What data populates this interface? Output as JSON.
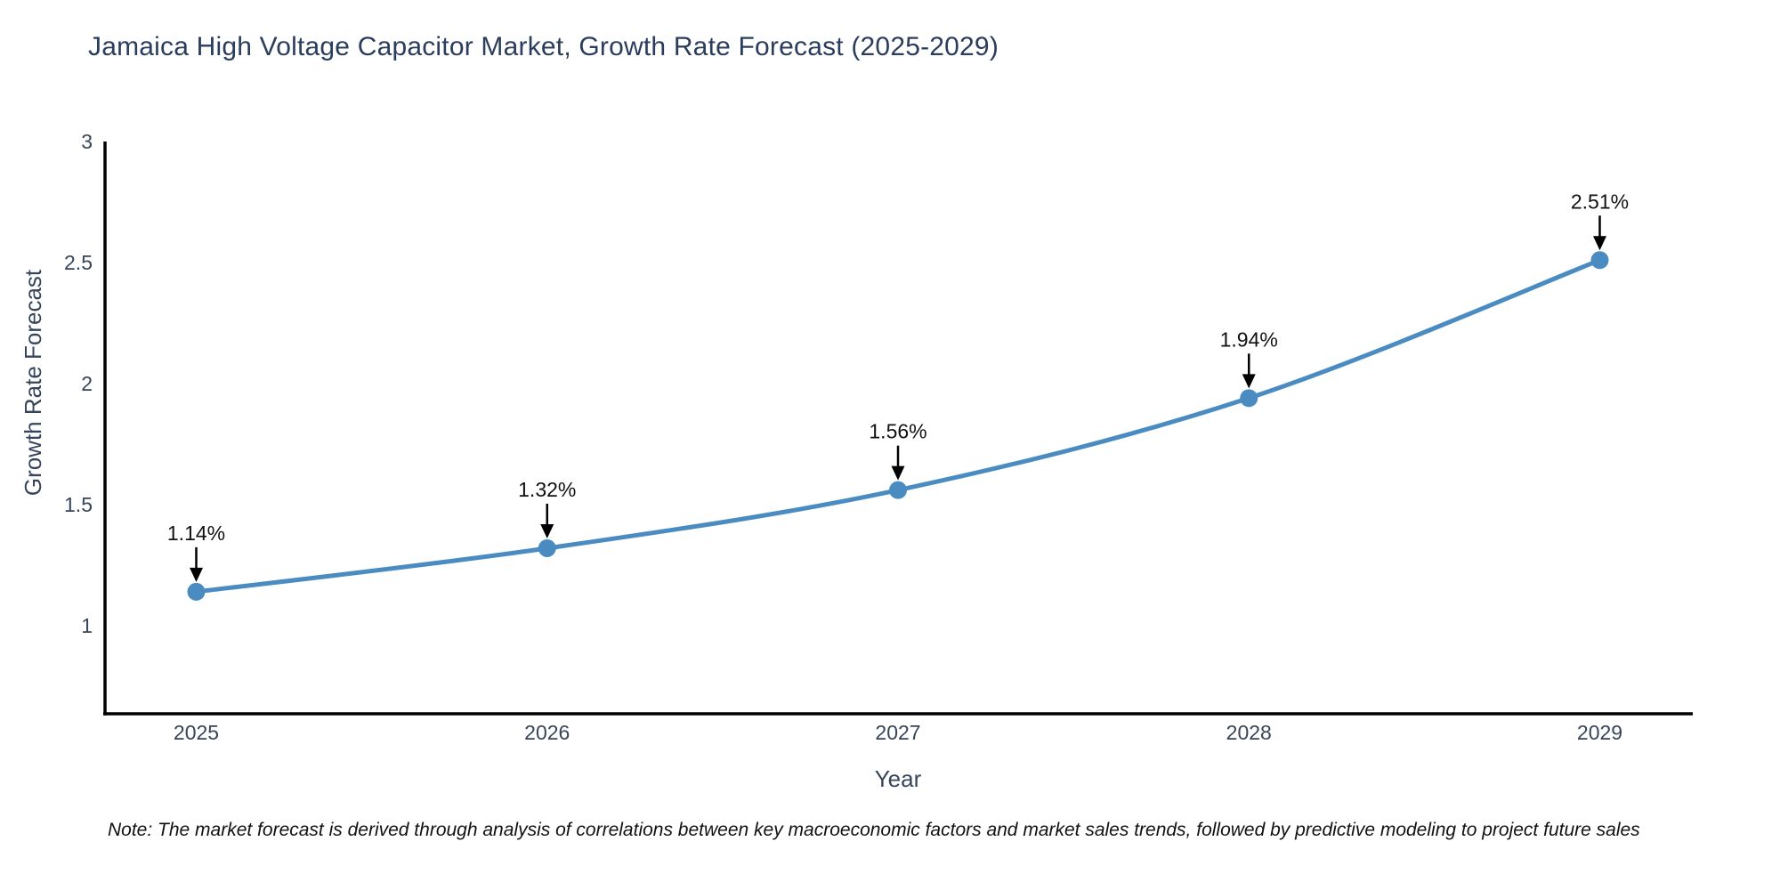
{
  "chart": {
    "title": "Jamaica High Voltage Capacitor Market, Growth Rate Forecast (2025-2029)",
    "note": "Note: The market forecast is derived through analysis of correlations between key macroeconomic factors and market sales trends, followed by predictive modeling to project future sales"
  },
  "chart_data": {
    "type": "line",
    "title": "Jamaica High Voltage Capacitor Market, Growth Rate Forecast (2025-2029)",
    "xlabel": "Year",
    "ylabel": "Growth Rate Forecast",
    "x": [
      2025,
      2026,
      2027,
      2028,
      2029
    ],
    "values": [
      1.14,
      1.32,
      1.56,
      1.94,
      2.51
    ],
    "point_labels": [
      "1.14%",
      "1.32%",
      "1.56%",
      "1.94%",
      "2.51%"
    ],
    "x_tick_labels": [
      "2025",
      "2026",
      "2027",
      "2028",
      "2029"
    ],
    "y_ticks": [
      1,
      1.5,
      2,
      2.5,
      3
    ],
    "y_tick_labels": [
      "1",
      "1.5",
      "2",
      "2.5",
      "3"
    ],
    "xlim": [
      2024.74,
      2029.26
    ],
    "ylim": [
      0.636,
      3.0
    ],
    "grid": false,
    "legend": "none",
    "line_shape": "spline",
    "colors": {
      "line": "#4a8cc2",
      "marker": "#4a8cc2",
      "axis": "#000000",
      "annotation_text": "#111111",
      "annotation_arrow": "#000000",
      "title_text": "#2b3d5c",
      "tick_text": "#36455a",
      "note_text": "#111111"
    }
  }
}
